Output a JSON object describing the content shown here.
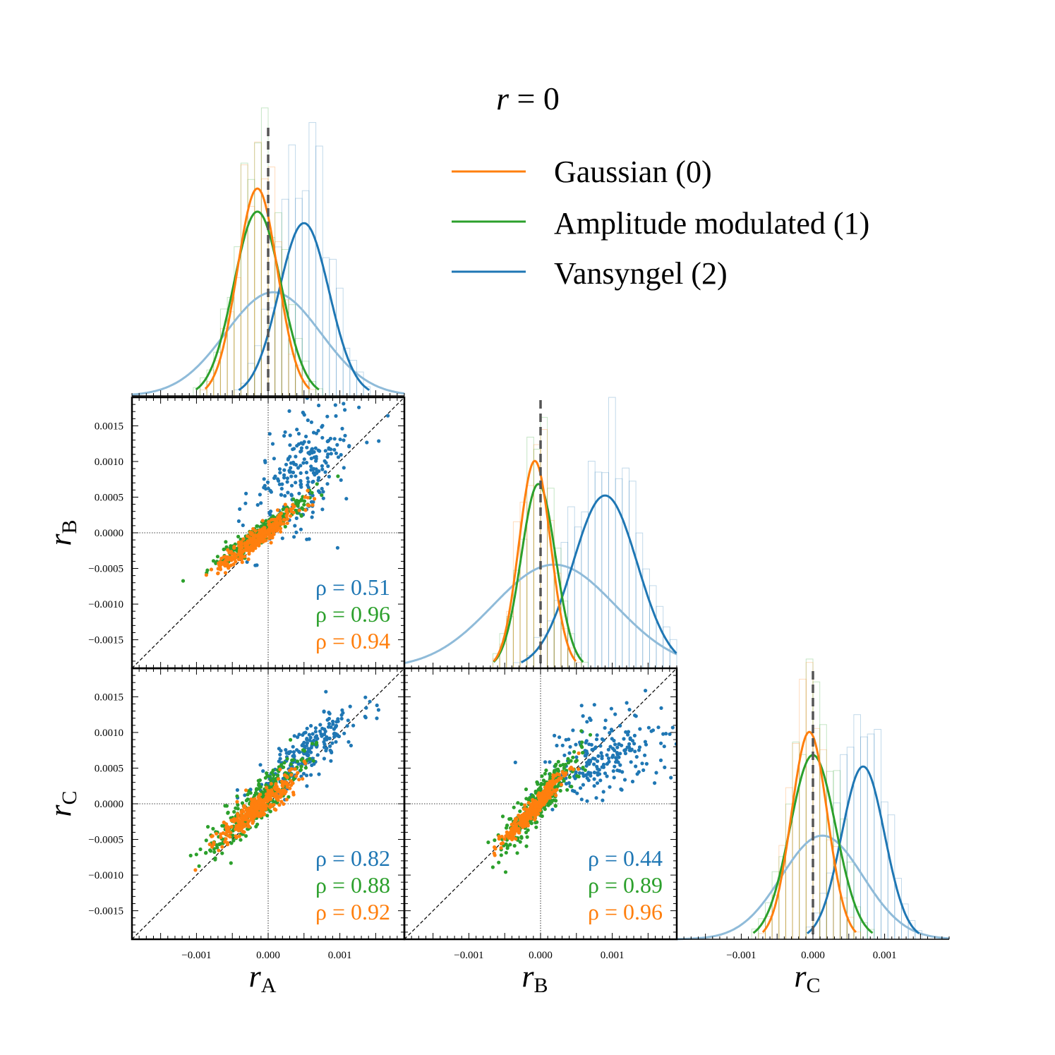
{
  "title": {
    "var": "r",
    "eq": " = ",
    "val": "0"
  },
  "colors": {
    "gaussian": "#ff7f0e",
    "amplitude": "#2ca02c",
    "vansyngel": "#1f77b4",
    "vansyngel_light": "#8fbbd9",
    "truth": "#555555"
  },
  "legend": {
    "items": [
      {
        "label": "Gaussian (0)",
        "color": "#ff7f0e"
      },
      {
        "label": "Amplitude modulated (1)",
        "color": "#2ca02c"
      },
      {
        "label": "Vansyngel (2)",
        "color": "#1f77b4"
      }
    ]
  },
  "chart_data": {
    "type": "corner",
    "title": "r = 0",
    "parameters": [
      "A",
      "B",
      "C"
    ],
    "axis_range": [
      -0.0019,
      0.0019
    ],
    "truth_value": 0.0,
    "x_ticks": [
      -0.001,
      0.0,
      0.001
    ],
    "x_tick_labels": [
      "−0.001",
      "0.000",
      "0.001"
    ],
    "y_ticks": [
      0.0015,
      0.001,
      0.0005,
      0.0,
      -0.0005,
      -0.001,
      -0.0015
    ],
    "y_tick_labels": [
      "0.0015",
      "0.0010",
      "0.0005",
      "0.0000",
      "−0.0005",
      "−0.0010",
      "−0.0015"
    ],
    "axis_labels": {
      "x": [
        {
          "var": "r",
          "sub": "A"
        },
        {
          "var": "r",
          "sub": "B"
        },
        {
          "var": "r",
          "sub": "C"
        }
      ],
      "y": [
        {
          "var": "r",
          "sub": "B"
        },
        {
          "var": "r",
          "sub": "C"
        }
      ]
    },
    "series": [
      {
        "name": "Gaussian (0)",
        "color": "#ff7f0e",
        "mean": {
          "A": -0.00015,
          "B": -8e-05,
          "C": -5e-05
        },
        "std": {
          "A": 0.00028,
          "B": 0.00022,
          "C": 0.00025
        }
      },
      {
        "name": "Amplitude modulated (1)",
        "color": "#2ca02c",
        "mean": {
          "A": -0.00015,
          "B": -3e-05,
          "C": 0.0
        },
        "std": {
          "A": 0.00033,
          "B": 0.00024,
          "C": 0.00032
        }
      },
      {
        "name": "Vansyngel (2)",
        "color": "#1f77b4",
        "mean": {
          "A": 0.0005,
          "B": 0.0009,
          "C": 0.0007
        },
        "std": {
          "A": 0.00035,
          "B": 0.00045,
          "C": 0.0003
        }
      }
    ],
    "correlations": {
      "BA": [
        {
          "series": "Vansyngel (2)",
          "color": "#1f77b4",
          "label": "ρ = 0.51"
        },
        {
          "series": "Amplitude modulated (1)",
          "color": "#2ca02c",
          "label": "ρ = 0.96"
        },
        {
          "series": "Gaussian (0)",
          "color": "#ff7f0e",
          "label": "ρ = 0.94"
        }
      ],
      "CA": [
        {
          "series": "Vansyngel (2)",
          "color": "#1f77b4",
          "label": "ρ = 0.82"
        },
        {
          "series": "Amplitude modulated (1)",
          "color": "#2ca02c",
          "label": "ρ = 0.88"
        },
        {
          "series": "Gaussian (0)",
          "color": "#ff7f0e",
          "label": "ρ = 0.92"
        }
      ],
      "CB": [
        {
          "series": "Vansyngel (2)",
          "color": "#1f77b4",
          "label": "ρ = 0.44"
        },
        {
          "series": "Amplitude modulated (1)",
          "color": "#2ca02c",
          "label": "ρ = 0.89"
        },
        {
          "series": "Gaussian (0)",
          "color": "#ff7f0e",
          "label": "ρ = 0.96"
        }
      ]
    }
  }
}
